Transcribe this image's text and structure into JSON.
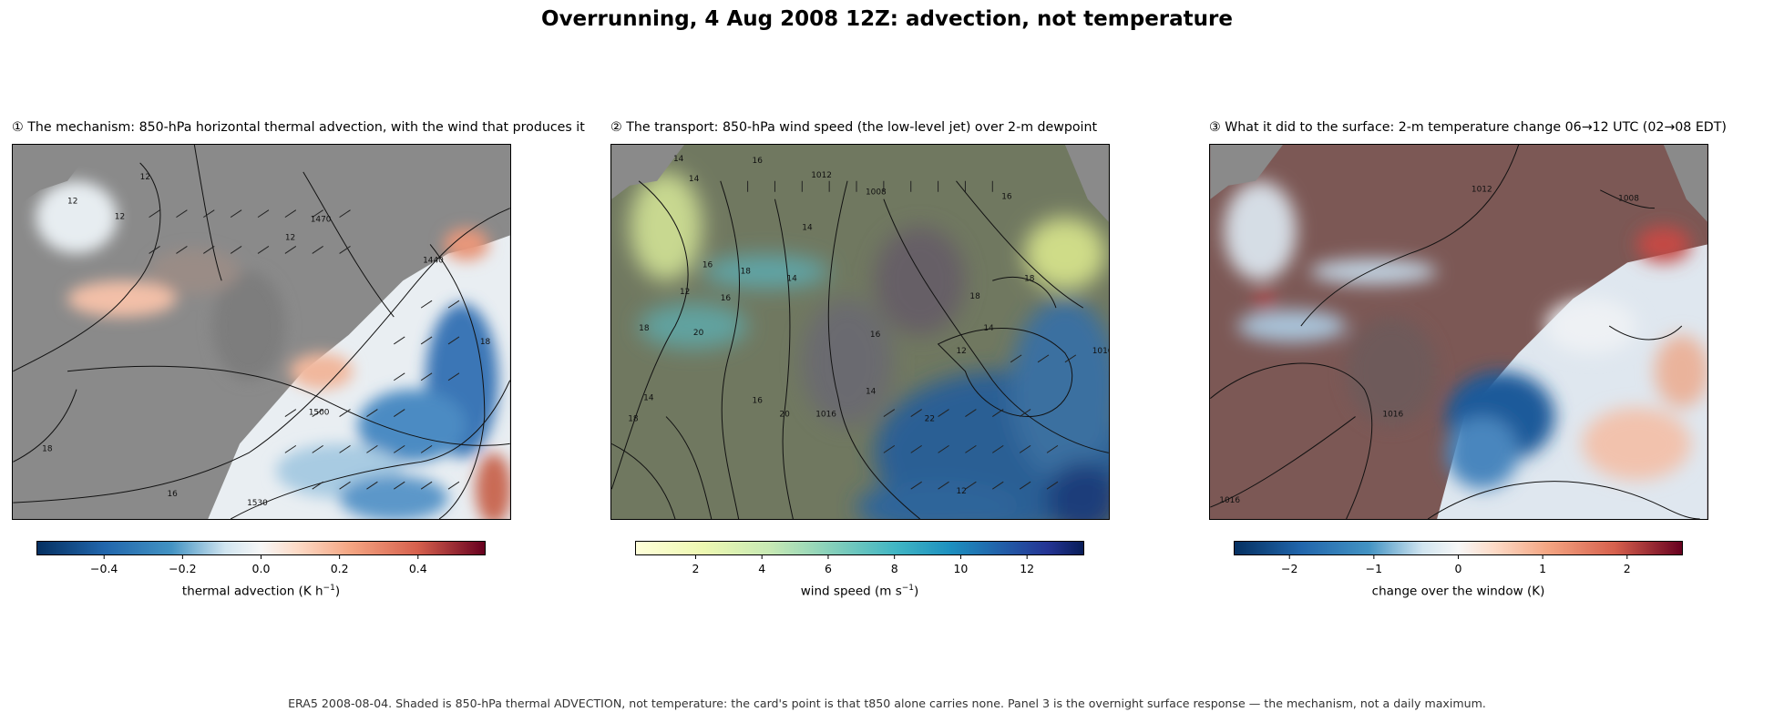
{
  "suptitle": "Overrunning, 4 Aug 2008 12Z: advection, not temperature",
  "footer": "ERA5 2008-08-04. Shaded is 850-hPa thermal ADVECTION, not temperature: the card's point is that t850 alone carries none. Panel 3 is the overnight surface response — the mechanism, not a daily maximum.",
  "chart_data": [
    {
      "type": "heatmap",
      "title": "① The mechanism: 850-hPa horizontal thermal advection, with the wind that produces it",
      "field": "850-hPa horizontal thermal advection",
      "overlays": [
        "850-hPa wind barbs",
        "geopotential height contours"
      ],
      "contour_labels": [
        "12",
        "12",
        "12",
        "12",
        "1470",
        "1440",
        "1500",
        "1530",
        "18",
        "16",
        "18"
      ],
      "colormap": "RdBu_r",
      "colorbar": {
        "label_text": "thermal advection (K h",
        "label_exp": "−1",
        "label_close": ")",
        "range": [
          -0.57,
          0.57
        ],
        "ticks": [
          -0.4,
          -0.2,
          0.0,
          0.2,
          0.4
        ],
        "tick_labels": [
          "−0.4",
          "−0.2",
          "0.0",
          "0.2",
          "0.4"
        ]
      }
    },
    {
      "type": "heatmap",
      "title": "② The transport: 850-hPa wind speed (the low-level jet) over 2-m dewpoint",
      "field": "850-hPa wind speed",
      "overlays": [
        "850-hPa wind barbs",
        "2-m dewpoint contours"
      ],
      "contour_labels": [
        "14",
        "16",
        "14",
        "1012",
        "1008",
        "16",
        "14",
        "16",
        "18",
        "12",
        "16",
        "14",
        "18",
        "20",
        "18",
        "18",
        "14",
        "12",
        "16",
        "14",
        "1016",
        "18",
        "14",
        "16",
        "20",
        "22",
        "12",
        "1016"
      ],
      "colormap": "YlGnBu",
      "colorbar": {
        "label_text": "wind speed (m s",
        "label_exp": "−1",
        "label_close": ")",
        "range": [
          0.2,
          13.7
        ],
        "ticks": [
          2,
          4,
          6,
          8,
          10,
          12
        ],
        "tick_labels": [
          "2",
          "4",
          "6",
          "8",
          "10",
          "12"
        ]
      }
    },
    {
      "type": "heatmap",
      "title": "③ What it did to the surface: 2-m temperature change 06→12 UTC (02→08 EDT)",
      "field": "2-m temperature change 06→12 UTC",
      "overlays": [
        "sea-level pressure contours"
      ],
      "contour_labels": [
        "1012",
        "1008",
        "1016",
        "1016"
      ],
      "colormap": "RdBu_r",
      "colorbar": {
        "label_text": "change over the window (K)",
        "label_exp": "",
        "label_close": "",
        "range": [
          -2.65,
          2.65
        ],
        "ticks": [
          -2,
          -1,
          0,
          1,
          2
        ],
        "tick_labels": [
          "−2",
          "−1",
          "0",
          "1",
          "2"
        ]
      }
    }
  ]
}
